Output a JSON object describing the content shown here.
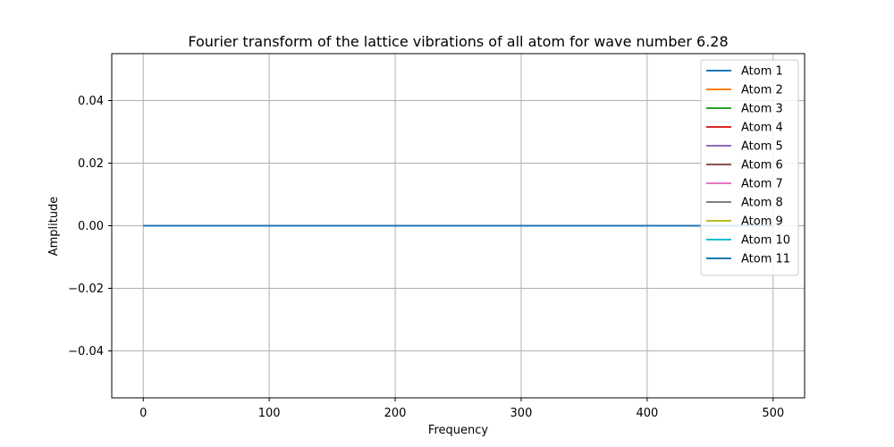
{
  "chart_data": {
    "type": "line",
    "title": "Fourier transform of the lattice vibrations of all atom for wave number 6.28",
    "xlabel": "Frequency",
    "ylabel": "Amplitude",
    "xlim": [
      -25,
      525
    ],
    "ylim": [
      -0.055,
      0.055
    ],
    "xticks": [
      0,
      100,
      200,
      300,
      400,
      500
    ],
    "xtick_labels": [
      "0",
      "100",
      "200",
      "300",
      "400",
      "500"
    ],
    "yticks": [
      -0.04,
      -0.02,
      0.0,
      0.02,
      0.04
    ],
    "ytick_labels": [
      "−0.04",
      "−0.02",
      "0.00",
      "0.02",
      "0.04"
    ],
    "grid": true,
    "legend_position": "top-right",
    "x": [
      0,
      500
    ],
    "series": [
      {
        "name": "Atom 1",
        "color": "#1f77b4",
        "values": [
          0,
          0
        ]
      },
      {
        "name": "Atom 2",
        "color": "#ff7f0e",
        "values": [
          0,
          0
        ]
      },
      {
        "name": "Atom 3",
        "color": "#2ca02c",
        "values": [
          0,
          0
        ]
      },
      {
        "name": "Atom 4",
        "color": "#d62728",
        "values": [
          0,
          0
        ]
      },
      {
        "name": "Atom 5",
        "color": "#9467bd",
        "values": [
          0,
          0
        ]
      },
      {
        "name": "Atom 6",
        "color": "#8c564b",
        "values": [
          0,
          0
        ]
      },
      {
        "name": "Atom 7",
        "color": "#e377c2",
        "values": [
          0,
          0
        ]
      },
      {
        "name": "Atom 8",
        "color": "#7f7f7f",
        "values": [
          0,
          0
        ]
      },
      {
        "name": "Atom 9",
        "color": "#bcbd22",
        "values": [
          0,
          0
        ]
      },
      {
        "name": "Atom 10",
        "color": "#17becf",
        "values": [
          0,
          0
        ]
      },
      {
        "name": "Atom 11",
        "color": "#1f77b4",
        "values": [
          0,
          0
        ]
      }
    ]
  }
}
